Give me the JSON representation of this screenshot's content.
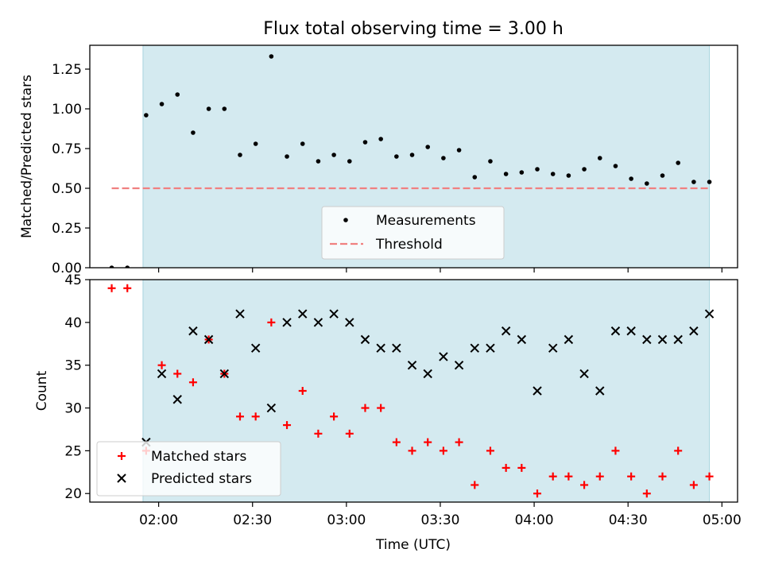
{
  "chart_data": [
    {
      "type": "scatter",
      "title": "Flux total observing time = 3.00 h",
      "xlabel": "",
      "ylabel": "Matched/Predicted stars",
      "ylim": [
        0,
        1.4
      ],
      "yticks": [
        "0.00",
        "0.25",
        "0.50",
        "0.75",
        "1.00",
        "1.25"
      ],
      "ytick_values": [
        0,
        0.25,
        0.5,
        0.75,
        1.0,
        1.25
      ],
      "observing_window": [
        "01:55",
        "04:56"
      ],
      "threshold": {
        "value": 0.5,
        "from": "01:45",
        "to": "04:56",
        "color": "#f08080"
      },
      "shade_color": "#d4eaf0",
      "legend": {
        "placement": "lower-center",
        "entries": [
          "Measurements",
          "Threshold"
        ]
      },
      "series": [
        {
          "name": "Measurements",
          "marker": "dot",
          "color": "#000000",
          "x": [
            "01:45",
            "01:50",
            "01:56",
            "02:01",
            "02:06",
            "02:11",
            "02:16",
            "02:21",
            "02:26",
            "02:31",
            "02:36",
            "02:41",
            "02:46",
            "02:51",
            "02:56",
            "03:01",
            "03:06",
            "03:11",
            "03:16",
            "03:21",
            "03:26",
            "03:31",
            "03:36",
            "03:41",
            "03:46",
            "03:51",
            "03:56",
            "04:01",
            "04:06",
            "04:11",
            "04:16",
            "04:21",
            "04:26",
            "04:31",
            "04:36",
            "04:41",
            "04:46",
            "04:51",
            "04:56"
          ],
          "y": [
            0.0,
            0.0,
            0.96,
            1.03,
            1.09,
            0.85,
            1.0,
            1.0,
            0.71,
            0.78,
            1.33,
            0.7,
            0.78,
            0.67,
            0.71,
            0.67,
            0.79,
            0.81,
            0.7,
            0.71,
            0.76,
            0.69,
            0.74,
            0.57,
            0.67,
            0.59,
            0.6,
            0.62,
            0.59,
            0.58,
            0.62,
            0.69,
            0.64,
            0.56,
            0.53,
            0.58,
            0.66,
            0.54,
            0.54
          ]
        }
      ]
    },
    {
      "type": "scatter",
      "title": "",
      "xlabel": "Time (UTC)",
      "ylabel": "Count",
      "ylim": [
        19,
        45
      ],
      "yticks": [
        "20",
        "25",
        "30",
        "35",
        "40",
        "45"
      ],
      "ytick_values": [
        20,
        25,
        30,
        35,
        40,
        45
      ],
      "xticks": [
        "02:00",
        "02:30",
        "03:00",
        "03:30",
        "04:00",
        "04:30",
        "05:00"
      ],
      "observing_window": [
        "01:55",
        "04:56"
      ],
      "shade_color": "#d4eaf0",
      "legend": {
        "placement": "lower-left",
        "entries": [
          "Matched stars",
          "Predicted stars"
        ]
      },
      "series": [
        {
          "name": "Matched stars",
          "marker": "plus",
          "color": "#ff0000",
          "x": [
            "01:45",
            "01:50",
            "01:56",
            "02:01",
            "02:06",
            "02:11",
            "02:16",
            "02:21",
            "02:26",
            "02:31",
            "02:36",
            "02:41",
            "02:46",
            "02:51",
            "02:56",
            "03:01",
            "03:06",
            "03:11",
            "03:16",
            "03:21",
            "03:26",
            "03:31",
            "03:36",
            "03:41",
            "03:46",
            "03:51",
            "03:56",
            "04:01",
            "04:06",
            "04:11",
            "04:16",
            "04:21",
            "04:26",
            "04:31",
            "04:36",
            "04:41",
            "04:46",
            "04:51",
            "04:56"
          ],
          "y": [
            44,
            44,
            25,
            35,
            34,
            33,
            38,
            34,
            29,
            29,
            40,
            28,
            32,
            27,
            29,
            27,
            30,
            30,
            26,
            25,
            26,
            25,
            26,
            21,
            25,
            23,
            23,
            20,
            22,
            22,
            21,
            22,
            25,
            22,
            20,
            22,
            25,
            21,
            22
          ]
        },
        {
          "name": "Predicted stars",
          "marker": "x",
          "color": "#000000",
          "x": [
            "01:56",
            "02:01",
            "02:06",
            "02:11",
            "02:16",
            "02:21",
            "02:26",
            "02:31",
            "02:36",
            "02:41",
            "02:46",
            "02:51",
            "02:56",
            "03:01",
            "03:06",
            "03:11",
            "03:16",
            "03:21",
            "03:26",
            "03:31",
            "03:36",
            "03:41",
            "03:46",
            "03:51",
            "03:56",
            "04:01",
            "04:06",
            "04:11",
            "04:16",
            "04:21",
            "04:26",
            "04:31",
            "04:36",
            "04:41",
            "04:46",
            "04:51",
            "04:56"
          ],
          "y": [
            26,
            34,
            31,
            39,
            38,
            34,
            41,
            37,
            30,
            40,
            41,
            40,
            41,
            40,
            38,
            37,
            37,
            35,
            34,
            36,
            35,
            37,
            37,
            39,
            38,
            32,
            37,
            38,
            34,
            32,
            39,
            39,
            38,
            38,
            38,
            39,
            41
          ]
        }
      ]
    }
  ]
}
